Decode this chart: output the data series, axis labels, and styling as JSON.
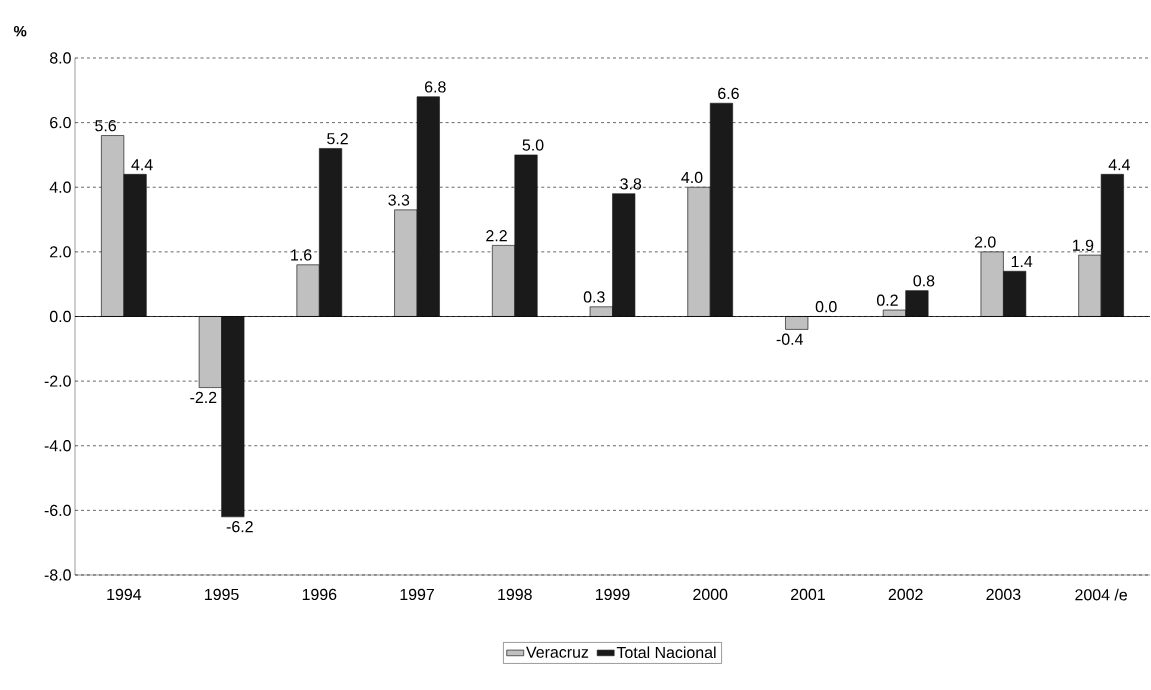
{
  "chart_data": {
    "type": "bar",
    "ylabel": "%",
    "categories": [
      "1994",
      "1995",
      "1996",
      "1997",
      "1998",
      "1999",
      "2000",
      "2001",
      "2002",
      "2003",
      "2004 /e"
    ],
    "series": [
      {
        "name": "Veracruz",
        "color": "#c0c0c0",
        "values": [
          5.6,
          -2.2,
          1.6,
          3.3,
          2.2,
          0.3,
          4.0,
          -0.4,
          0.2,
          2.0,
          1.9
        ],
        "value_labels": [
          "5.6",
          "-2.2",
          "1.6",
          "3.3",
          "2.2",
          "0.3",
          "4.0",
          "-0.4",
          "0.2",
          "2.0",
          "1.9"
        ]
      },
      {
        "name": "Total Nacional",
        "color": "#1a1a1a",
        "values": [
          4.4,
          -6.2,
          5.2,
          6.8,
          5.0,
          3.8,
          6.6,
          0.0,
          0.8,
          1.4,
          4.4
        ],
        "value_labels": [
          "4.4",
          "-6.2",
          "5.2",
          "6.8",
          "5.0",
          "3.8",
          "6.6",
          "0.0",
          "0.8",
          "1.4",
          "4.4"
        ]
      }
    ],
    "ylim": [
      -8,
      8
    ],
    "yticks": [
      {
        "value": -8,
        "label": "-8.0"
      },
      {
        "value": -6,
        "label": "-6.0"
      },
      {
        "value": -4,
        "label": "-4.0"
      },
      {
        "value": -2,
        "label": "-2.0"
      },
      {
        "value": 0,
        "label": "0.0"
      },
      {
        "value": 2,
        "label": "2.0"
      },
      {
        "value": 4,
        "label": "4.0"
      },
      {
        "value": 6,
        "label": "6.0"
      },
      {
        "value": 8,
        "label": "8.0"
      }
    ],
    "grid": "y",
    "legend": "bottom"
  }
}
